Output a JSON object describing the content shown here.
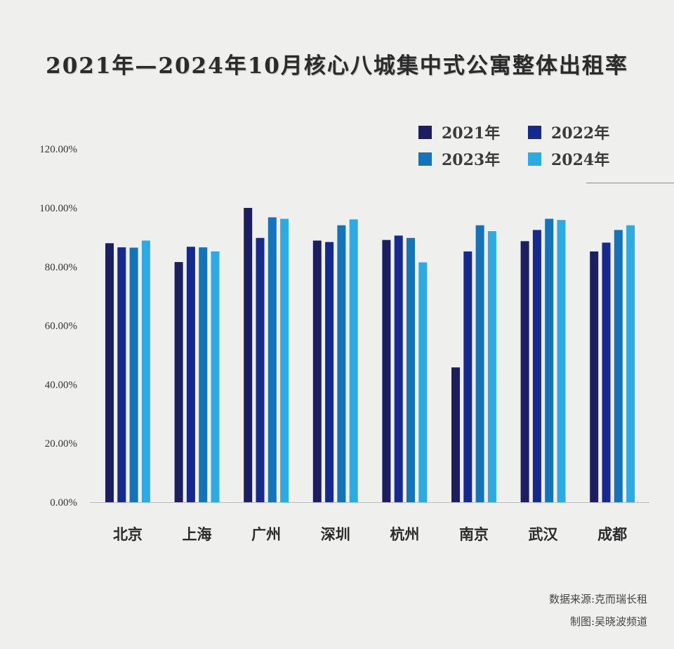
{
  "chart_data": {
    "type": "bar",
    "title": "2021年—2024年10月核心八城集中式公寓整体出租率",
    "categories": [
      "北京",
      "上海",
      "广州",
      "深圳",
      "杭州",
      "南京",
      "武汉",
      "成都"
    ],
    "series": [
      {
        "name": "2021年",
        "color": "#1b1f5f",
        "values": [
          88.0,
          81.6,
          100.0,
          88.9,
          89.1,
          45.8,
          88.7,
          85.2
        ]
      },
      {
        "name": "2022年",
        "color": "#152a8c",
        "values": [
          86.6,
          86.8,
          89.8,
          88.4,
          90.6,
          85.2,
          92.5,
          88.2
        ]
      },
      {
        "name": "2023年",
        "color": "#1474b9",
        "values": [
          86.5,
          86.6,
          96.8,
          94.1,
          89.8,
          94.1,
          96.3,
          92.5
        ]
      },
      {
        "name": "2024年",
        "color": "#2eaae3",
        "values": [
          88.9,
          85.2,
          96.3,
          96.1,
          81.5,
          92.1,
          95.9,
          94.1
        ]
      }
    ],
    "yticks": [
      "0.00%",
      "20.00%",
      "40.00%",
      "60.00%",
      "80.00%",
      "100.00%",
      "120.00%"
    ],
    "ylim": [
      0,
      120
    ],
    "grid": false,
    "legend_position": "top-right"
  },
  "footer": {
    "source": "数据来源:克而瑞长租",
    "maker": "制图:吴晓波频道"
  }
}
